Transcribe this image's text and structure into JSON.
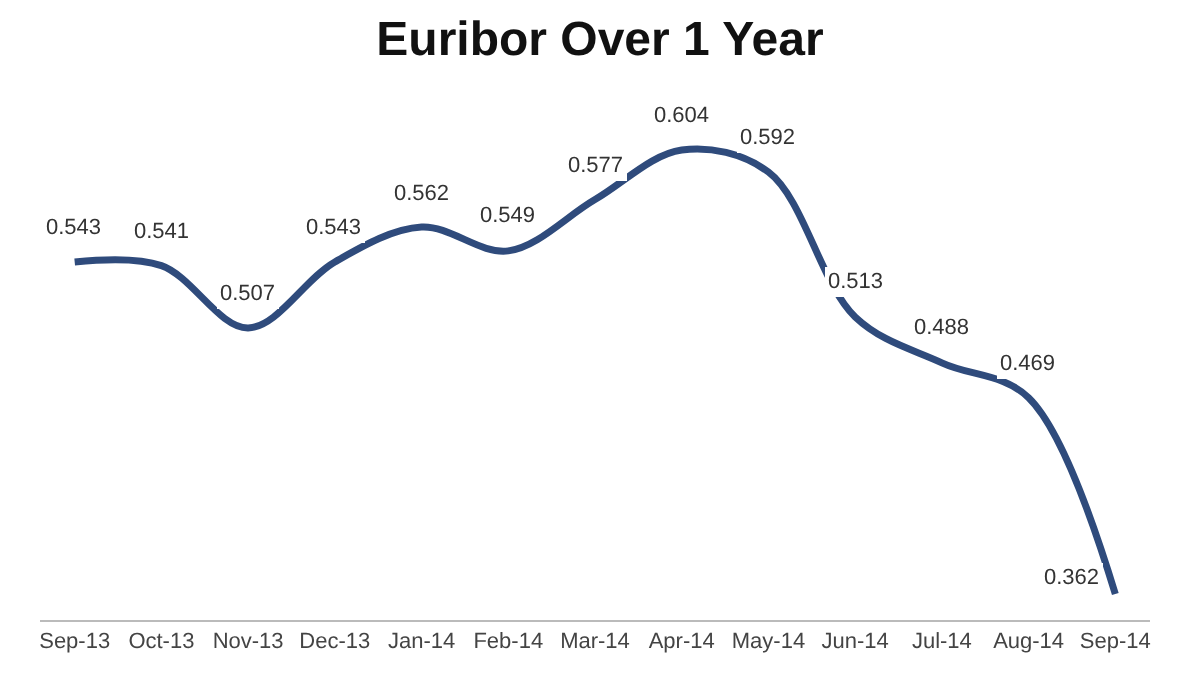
{
  "chart_data": {
    "type": "line",
    "title": "Euribor Over 1 Year",
    "categories": [
      "Sep-13",
      "Oct-13",
      "Nov-13",
      "Dec-13",
      "Jan-14",
      "Feb-14",
      "Mar-14",
      "Apr-14",
      "May-14",
      "Jun-14",
      "Jul-14",
      "Aug-14",
      "Sep-14"
    ],
    "series": [
      {
        "color": "#2f4b7c",
        "values": [
          0.543,
          0.541,
          0.507,
          0.543,
          0.562,
          0.549,
          0.577,
          0.604,
          0.592,
          0.513,
          0.488,
          0.469,
          0.362
        ]
      }
    ],
    "data_labels": true,
    "marker": "none",
    "line_style": "solid",
    "tick_labels": "x"
  }
}
